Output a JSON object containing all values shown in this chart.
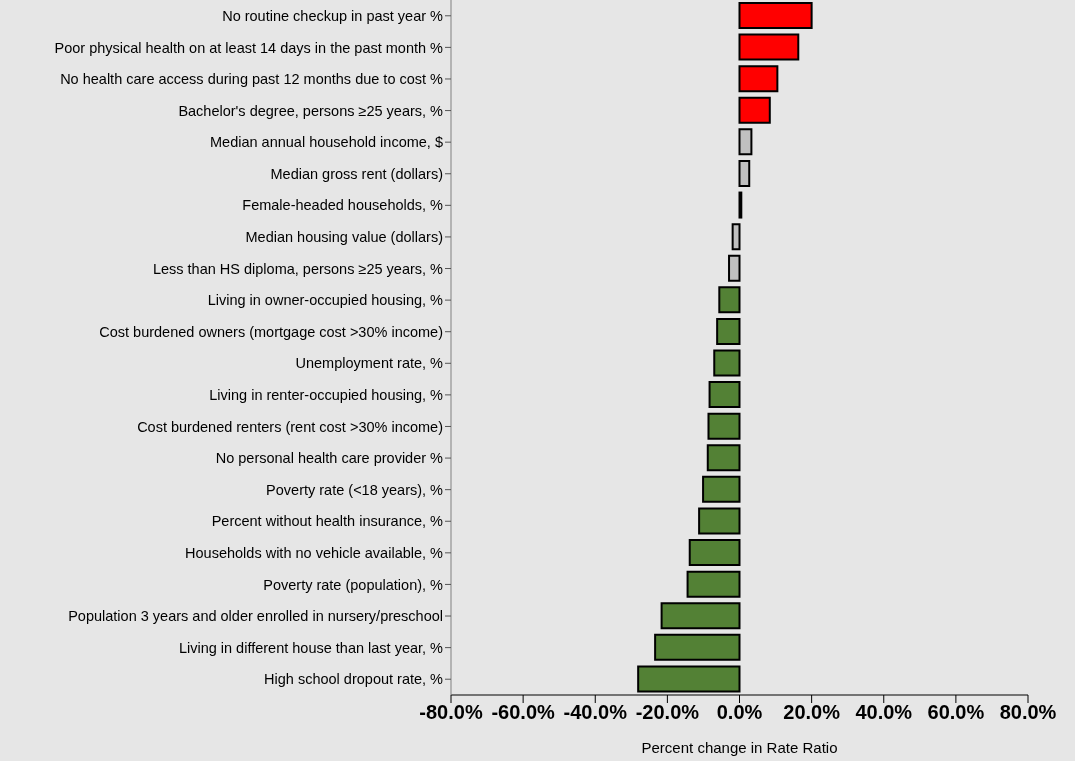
{
  "chart_data": {
    "type": "bar",
    "orientation": "horizontal",
    "xlabel": "Percent change in Rate Ratio",
    "categories": [
      "No routine checkup in past year %",
      "Poor physical health on at least 14 days in the past month %",
      "No health care access during past 12 months due to cost %",
      "Bachelor's degree, persons ≥25 years, %",
      "Median annual household income, $",
      "Median gross rent (dollars)",
      "Female-headed households, %",
      "Median housing value (dollars)",
      "Less than HS diploma, persons ≥25 years, %",
      "Living in owner-occupied housing, %",
      "Cost burdened owners (mortgage cost >30% income)",
      "Unemployment rate, %",
      "Living in renter-occupied housing, %",
      "Cost burdened renters (rent cost >30% income)",
      "No personal health care provider %",
      "Poverty rate (<18 years), %",
      "Percent without health insurance, %",
      "Households with no vehicle available, %",
      "Poverty rate (population), %",
      "Population 3 years and older enrolled in nursery/preschool",
      "Living in different house than last year, %",
      "High school dropout rate, %"
    ],
    "values": [
      20.0,
      16.3,
      10.5,
      8.4,
      3.3,
      2.7,
      0.5,
      -1.9,
      -2.9,
      -5.6,
      -6.2,
      -7.0,
      -8.3,
      -8.6,
      -8.8,
      -10.1,
      -11.2,
      -13.8,
      -14.4,
      -21.6,
      -23.4,
      -28.1
    ],
    "colors": [
      "#ff0000",
      "#ff0000",
      "#ff0000",
      "#ff0000",
      "#c0c0c0",
      "#c0c0c0",
      "#c0c0c0",
      "#c0c0c0",
      "#c0c0c0",
      "#538135",
      "#538135",
      "#538135",
      "#538135",
      "#538135",
      "#538135",
      "#538135",
      "#538135",
      "#538135",
      "#538135",
      "#538135",
      "#538135",
      "#538135"
    ],
    "xlim": [
      -80,
      80
    ],
    "xticks": [
      {
        "value": -80,
        "label": "-80.0%"
      },
      {
        "value": -60,
        "label": "-60.0%"
      },
      {
        "value": -40,
        "label": "-40.0%"
      },
      {
        "value": -20,
        "label": "-20.0%"
      },
      {
        "value": 0,
        "label": "0.0%"
      },
      {
        "value": 20,
        "label": "20.0%"
      },
      {
        "value": 40,
        "label": "40.0%"
      },
      {
        "value": 60,
        "label": "60.0%"
      },
      {
        "value": 80,
        "label": "80.0%"
      }
    ],
    "grid": false
  }
}
